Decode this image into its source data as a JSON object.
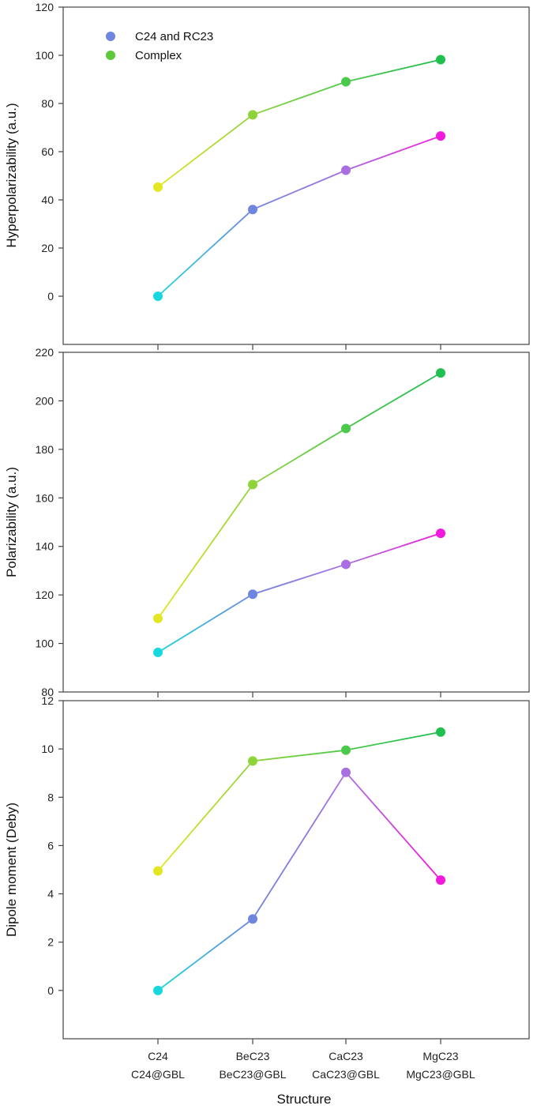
{
  "chart_data": [
    {
      "type": "line",
      "ylabel": "Hyperpolarizability (a.u.)",
      "ylim": [
        -20,
        120
      ],
      "yticks": [
        0,
        20,
        40,
        60,
        80,
        100,
        120
      ],
      "categories": [
        [
          "C24",
          "C24@GBL"
        ],
        [
          "BeC23",
          "BeC23@GBL"
        ],
        [
          "CaC23",
          "CaC23@GBL"
        ],
        [
          "MgC23",
          "MgC23@GBL"
        ]
      ],
      "series": [
        {
          "name": "C24 and RC23",
          "values": [
            0,
            36,
            52.3,
            66.5
          ]
        },
        {
          "name": "Complex",
          "values": [
            45.3,
            75.3,
            89,
            98.2
          ]
        }
      ],
      "legend": "top-left"
    },
    {
      "type": "line",
      "ylabel": "Polarizability (a.u.)",
      "ylim": [
        80,
        220
      ],
      "yticks": [
        80,
        100,
        120,
        140,
        160,
        180,
        200,
        220
      ],
      "categories": [
        [
          "C24",
          "C24@GBL"
        ],
        [
          "BeC23",
          "BeC23@GBL"
        ],
        [
          "CaC23",
          "CaC23@GBL"
        ],
        [
          "MgC23",
          "MgC23@GBL"
        ]
      ],
      "series": [
        {
          "name": "C24 and RC23",
          "values": [
            96.3,
            120.3,
            132.6,
            145.4
          ]
        },
        {
          "name": "Complex",
          "values": [
            110.3,
            165.5,
            188.6,
            211.5
          ]
        }
      ]
    },
    {
      "type": "line",
      "ylabel": "Dipole moment (Deby)",
      "xlabel": "Structure",
      "ylim": [
        -2,
        12
      ],
      "yticks": [
        0,
        2,
        4,
        6,
        8,
        10,
        12
      ],
      "categories": [
        [
          "C24",
          "C24@GBL"
        ],
        [
          "BeC23",
          "BeC23@GBL"
        ],
        [
          "CaC23",
          "CaC23@GBL"
        ],
        [
          "MgC23",
          "MgC23@GBL"
        ]
      ],
      "series": [
        {
          "name": "C24 and RC23",
          "values": [
            0,
            2.96,
            9.03,
            4.57
          ]
        },
        {
          "name": "Complex",
          "values": [
            4.95,
            9.5,
            9.95,
            10.7
          ]
        }
      ]
    }
  ],
  "legend": {
    "items": [
      {
        "label": "C24 and RC23",
        "color_start": "#8a6de0",
        "color_end": "#3aa9ff",
        "marker": "#6f86e0"
      },
      {
        "label": "Complex",
        "color_start": "#d9e63c",
        "color_end": "#2fbf4a",
        "marker": "#5cc83a"
      }
    ]
  },
  "colors": {
    "series1": [
      "#1ad7dd",
      "#6f86e0",
      "#a96fe0",
      "#f318dd"
    ],
    "series2": [
      "#e3e620",
      "#8fd33a",
      "#4cc84a",
      "#1fbf50"
    ]
  }
}
